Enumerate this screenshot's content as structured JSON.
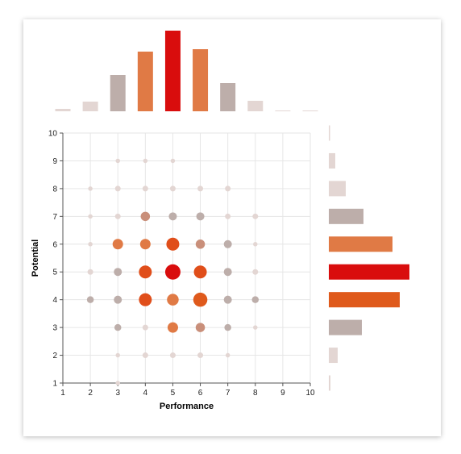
{
  "chart_data": {
    "type": "scatter",
    "subtype": "bubble-with-marginal-histograms",
    "xlabel": "Performance",
    "ylabel": "Potential",
    "xlim": [
      1,
      10
    ],
    "ylim": [
      1,
      10
    ],
    "xticks": [
      "1",
      "2",
      "3",
      "4",
      "5",
      "6",
      "7",
      "8",
      "9",
      "10"
    ],
    "yticks": [
      "1",
      "2",
      "3",
      "4",
      "5",
      "6",
      "7",
      "8",
      "9",
      "10"
    ],
    "grid": true,
    "colors": {
      "low": "#e3d6d3",
      "grey": "#bdaeaa",
      "muted": "#c98f7a",
      "mid": "#e07a45",
      "high": "#df5a1c",
      "peak": "#d90d0d"
    },
    "points": [
      {
        "x": 3,
        "y": 9,
        "v": 1
      },
      {
        "x": 4,
        "y": 9,
        "v": 1
      },
      {
        "x": 5,
        "y": 9,
        "v": 1
      },
      {
        "x": 2,
        "y": 8,
        "v": 1
      },
      {
        "x": 3,
        "y": 8,
        "v": 2
      },
      {
        "x": 4,
        "y": 8,
        "v": 2
      },
      {
        "x": 5,
        "y": 8,
        "v": 2
      },
      {
        "x": 6,
        "y": 8,
        "v": 2
      },
      {
        "x": 7,
        "y": 8,
        "v": 2
      },
      {
        "x": 2,
        "y": 7,
        "v": 1
      },
      {
        "x": 3,
        "y": 7,
        "v": 2
      },
      {
        "x": 4,
        "y": 7,
        "v": 5
      },
      {
        "x": 5,
        "y": 7,
        "v": 4
      },
      {
        "x": 6,
        "y": 7,
        "v": 4
      },
      {
        "x": 7,
        "y": 7,
        "v": 2
      },
      {
        "x": 8,
        "y": 7,
        "v": 2
      },
      {
        "x": 2,
        "y": 6,
        "v": 1
      },
      {
        "x": 3,
        "y": 6,
        "v": 6
      },
      {
        "x": 4,
        "y": 6,
        "v": 6
      },
      {
        "x": 5,
        "y": 6,
        "v": 8
      },
      {
        "x": 6,
        "y": 6,
        "v": 5
      },
      {
        "x": 7,
        "y": 6,
        "v": 4
      },
      {
        "x": 8,
        "y": 6,
        "v": 1
      },
      {
        "x": 2,
        "y": 5,
        "v": 2
      },
      {
        "x": 3,
        "y": 5,
        "v": 4
      },
      {
        "x": 4,
        "y": 5,
        "v": 8
      },
      {
        "x": 5,
        "y": 5,
        "v": 10
      },
      {
        "x": 6,
        "y": 5,
        "v": 8
      },
      {
        "x": 7,
        "y": 5,
        "v": 4
      },
      {
        "x": 8,
        "y": 5,
        "v": 2
      },
      {
        "x": 2,
        "y": 4,
        "v": 3
      },
      {
        "x": 3,
        "y": 4,
        "v": 4
      },
      {
        "x": 4,
        "y": 4,
        "v": 8
      },
      {
        "x": 5,
        "y": 4,
        "v": 7
      },
      {
        "x": 6,
        "y": 4,
        "v": 9
      },
      {
        "x": 7,
        "y": 4,
        "v": 4
      },
      {
        "x": 8,
        "y": 4,
        "v": 3
      },
      {
        "x": 3,
        "y": 3,
        "v": 3
      },
      {
        "x": 4,
        "y": 3,
        "v": 2
      },
      {
        "x": 5,
        "y": 3,
        "v": 6
      },
      {
        "x": 6,
        "y": 3,
        "v": 5
      },
      {
        "x": 7,
        "y": 3,
        "v": 3
      },
      {
        "x": 8,
        "y": 3,
        "v": 1
      },
      {
        "x": 3,
        "y": 2,
        "v": 1
      },
      {
        "x": 4,
        "y": 2,
        "v": 2
      },
      {
        "x": 5,
        "y": 2,
        "v": 2
      },
      {
        "x": 6,
        "y": 2,
        "v": 2
      },
      {
        "x": 7,
        "y": 2,
        "v": 1
      },
      {
        "x": 3,
        "y": 1,
        "v": 1
      }
    ],
    "top_histogram": {
      "categories": [
        "1",
        "2",
        "3",
        "4",
        "5",
        "6",
        "7",
        "8",
        "9",
        "10"
      ],
      "values": [
        3,
        12,
        45,
        74,
        100,
        77,
        35,
        13,
        1,
        1
      ],
      "colors": [
        "low",
        "low",
        "grey",
        "mid",
        "peak",
        "mid",
        "grey",
        "low",
        "low",
        "low"
      ]
    },
    "right_histogram": {
      "categories": [
        "10",
        "9",
        "8",
        "7",
        "6",
        "5",
        "4",
        "3",
        "2",
        "1"
      ],
      "values": [
        1,
        8,
        21,
        43,
        79,
        100,
        88,
        41,
        11,
        2
      ],
      "colors": [
        "low",
        "low",
        "low",
        "grey",
        "mid",
        "peak",
        "high",
        "grey",
        "low",
        "low"
      ]
    }
  }
}
